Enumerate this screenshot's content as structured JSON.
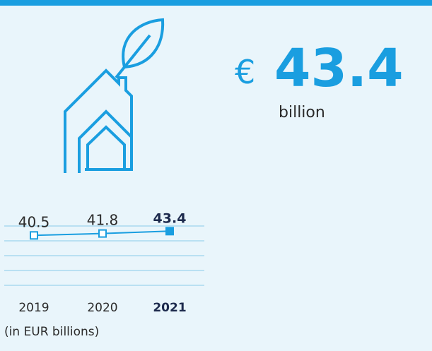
{
  "headline": {
    "currency": "€",
    "value": 43.4,
    "unit": "billion"
  },
  "chart_data": {
    "type": "line",
    "categories": [
      "2019",
      "2020",
      "2021"
    ],
    "series": [
      {
        "color": "#1a9ee0",
        "values": [
          40.5,
          41.8,
          43.4
        ]
      }
    ],
    "ylim": [
      0,
      60
    ],
    "note": "(in EUR billions)"
  }
}
